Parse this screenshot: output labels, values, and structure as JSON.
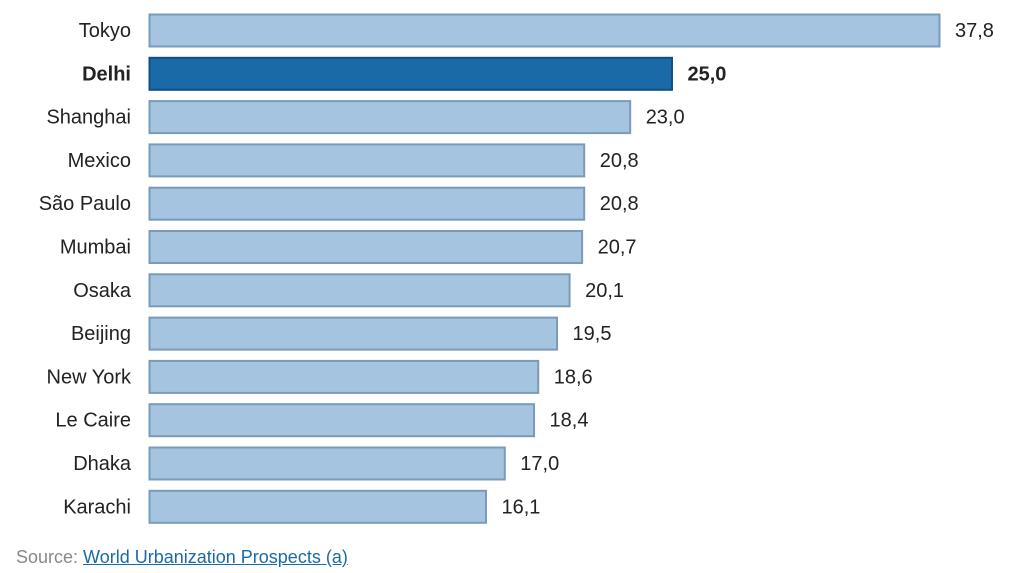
{
  "chart_data": {
    "type": "bar",
    "orientation": "horizontal",
    "categories": [
      "Tokyo",
      "Delhi",
      "Shanghai",
      "Mexico",
      "São Paulo",
      "Mumbai",
      "Osaka",
      "Beijing",
      "New York",
      "Le Caire",
      "Dhaka",
      "Karachi"
    ],
    "values": [
      37.8,
      25.0,
      23.0,
      20.8,
      20.8,
      20.7,
      20.1,
      19.5,
      18.6,
      18.4,
      17.0,
      16.1
    ],
    "value_labels": [
      "37,8",
      "25,0",
      "23,0",
      "20,8",
      "20,8",
      "20,7",
      "20,1",
      "19,5",
      "18,6",
      "18,4",
      "17,0",
      "16,1"
    ],
    "highlighted_category": "Delhi",
    "xlim": [
      0,
      37.8
    ],
    "grid": false,
    "legend": "none",
    "colors": {
      "bar_fill": "#a4c4e0",
      "bar_stroke": "#7a9bb8",
      "highlight_fill": "#1a6aa8",
      "highlight_stroke": "#0f4f82"
    }
  },
  "source": {
    "prefix": "Source: ",
    "link_text": "World Urbanization Prospects (a)"
  }
}
